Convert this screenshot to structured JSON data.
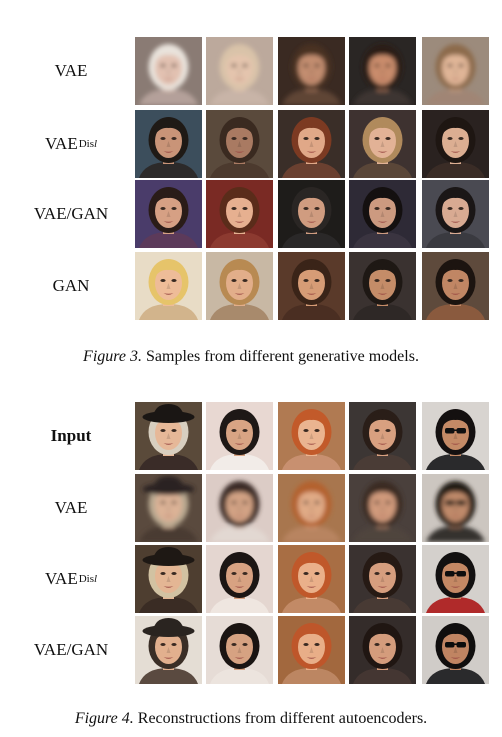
{
  "figure3": {
    "rows": [
      {
        "label": "VAE",
        "subscript": "",
        "bold": false,
        "blurred": true,
        "faces": [
          {
            "bg": "#8a7b74",
            "skin": "#e2c1b1",
            "hair": "#e9e3dc",
            "shirt": "#b4a09a"
          },
          {
            "bg": "#bca99c",
            "skin": "#e4c4ad",
            "hair": "#d9c3a9",
            "shirt": "#c8b4a7"
          },
          {
            "bg": "#3a2a22",
            "skin": "#c28d70",
            "hair": "#4a3022",
            "shirt": "#5e4536"
          },
          {
            "bg": "#2a2624",
            "skin": "#c98c6c",
            "hair": "#2a1c16",
            "shirt": "#3c3432"
          },
          {
            "bg": "#9c8b7c",
            "skin": "#e0b597",
            "hair": "#8c6a4c",
            "shirt": "#a08574"
          }
        ]
      },
      {
        "label": "VAE",
        "subscript": "Dis",
        "subscript_italic": "l",
        "bold": false,
        "blurred": false,
        "faces": [
          {
            "bg": "#3c4e5c",
            "skin": "#c99478",
            "hair": "#1f1a16",
            "shirt": "#2c2a2a"
          },
          {
            "bg": "#5a4a3c",
            "skin": "#a97a62",
            "hair": "#3a2a20",
            "shirt": "#4c3a2e"
          },
          {
            "bg": "#3a2e28",
            "skin": "#e0a888",
            "hair": "#7c3a22",
            "shirt": "#6a4030"
          },
          {
            "bg": "#3e3230",
            "skin": "#e2b296",
            "hair": "#b08a5c",
            "shirt": "#5a4638"
          },
          {
            "bg": "#2a2220",
            "skin": "#dcae92",
            "hair": "#1e1612",
            "shirt": "#3a2c26"
          }
        ]
      },
      {
        "label": "VAE/GAN",
        "subscript": "",
        "bold": false,
        "blurred": false,
        "faces": [
          {
            "bg": "#4a3c6a",
            "skin": "#d6a084",
            "hair": "#2a1c18",
            "shirt": "#5c3a5a"
          },
          {
            "bg": "#7a2a24",
            "skin": "#e6b090",
            "hair": "#5a2c1a",
            "shirt": "#8c3a30"
          },
          {
            "bg": "#1e1c1a",
            "skin": "#d09c80",
            "hair": "#2a2624",
            "shirt": "#2a2828"
          },
          {
            "bg": "#2e2a36",
            "skin": "#cc9a80",
            "hair": "#141010",
            "shirt": "#3a3440"
          },
          {
            "bg": "#4a4a52",
            "skin": "#d8aa92",
            "hair": "#1a1616",
            "shirt": "#3a3a40"
          }
        ]
      },
      {
        "label": "GAN",
        "subscript": "",
        "bold": false,
        "blurred": false,
        "faces": [
          {
            "bg": "#e8dcc6",
            "skin": "#eebc98",
            "hair": "#e6c46a",
            "shirt": "#d2b48c"
          },
          {
            "bg": "#c8b8a4",
            "skin": "#e2ae8a",
            "hair": "#b88a52",
            "shirt": "#a88a6c"
          },
          {
            "bg": "#5a3a2a",
            "skin": "#d69c76",
            "hair": "#3a2418",
            "shirt": "#4a2e22"
          },
          {
            "bg": "#3a3230",
            "skin": "#c48c68",
            "hair": "#1e1814",
            "shirt": "#2e2826"
          },
          {
            "bg": "#5e4a3c",
            "skin": "#c08664",
            "hair": "#1c1410",
            "shirt": "#8a5a3e"
          }
        ]
      }
    ],
    "caption_label": "Figure 3.",
    "caption_text": "Samples from different generative models."
  },
  "figure4": {
    "rows": [
      {
        "label": "Input",
        "subscript": "",
        "bold": true,
        "blurred": false,
        "faces": [
          {
            "bg": "#5a4a3a",
            "skin": "#e6b898",
            "hair": "#d8cfc0",
            "shirt": "#3a2c28",
            "hat": "#1a1614"
          },
          {
            "bg": "#e8d8d2",
            "skin": "#d8a484",
            "hair": "#1e1816",
            "shirt": "#f2ece8"
          },
          {
            "bg": "#b07a52",
            "skin": "#eab490",
            "hair": "#c25a2a",
            "shirt": "#c89070"
          },
          {
            "bg": "#3c3634",
            "skin": "#d8a080",
            "hair": "#2a1e18",
            "shirt": "#4a3c36"
          },
          {
            "bg": "#d8d4d0",
            "skin": "#c48a66",
            "hair": "#141010",
            "shirt": "#2a2a2c",
            "glasses": "#101010"
          }
        ]
      },
      {
        "label": "VAE",
        "subscript": "",
        "bold": false,
        "blurred": true,
        "faces": [
          {
            "bg": "#5a4a3e",
            "skin": "#dcb296",
            "hair": "#b8a890",
            "shirt": "#4a3a32",
            "hat": "#2a2420"
          },
          {
            "bg": "#dcccc6",
            "skin": "#d2a284",
            "hair": "#3a2c26",
            "shirt": "#e2d8d2"
          },
          {
            "bg": "#a8764e",
            "skin": "#e0aa86",
            "hair": "#b4622e",
            "shirt": "#b88460"
          },
          {
            "bg": "#4a403c",
            "skin": "#d09a7c",
            "hair": "#3a2c24",
            "shirt": "#50443e"
          },
          {
            "bg": "#ccc6c0",
            "skin": "#c08a6a",
            "hair": "#241c18",
            "shirt": "#34302e",
            "glasses": "#1e1a18"
          }
        ]
      },
      {
        "label": "VAE",
        "subscript": "Dis",
        "subscript_italic": "l",
        "bold": false,
        "blurred": false,
        "faces": [
          {
            "bg": "#4e3e30",
            "skin": "#e4b694",
            "hair": "#d2c2a2",
            "shirt": "#3a2c24",
            "hat": "#1e1814"
          },
          {
            "bg": "#e4d6d0",
            "skin": "#d8a282",
            "hair": "#1c1614",
            "shirt": "#efe6e0"
          },
          {
            "bg": "#a86e44",
            "skin": "#eab08a",
            "hair": "#c0582a",
            "shirt": "#c28a66"
          },
          {
            "bg": "#3a3230",
            "skin": "#d69e7e",
            "hair": "#261a14",
            "shirt": "#483a34"
          },
          {
            "bg": "#d4d0cc",
            "skin": "#c48864",
            "hair": "#121010",
            "shirt": "#b02a2a",
            "glasses": "#0e0e0e"
          }
        ]
      },
      {
        "label": "VAE/GAN",
        "subscript": "",
        "bold": false,
        "blurred": false,
        "faces": [
          {
            "bg": "#e4ddd4",
            "skin": "#e2b08e",
            "hair": "#3a2e26",
            "shirt": "#5a4a40",
            "hat": "#2a2420"
          },
          {
            "bg": "#e6dcd6",
            "skin": "#d6a282",
            "hair": "#1a1412",
            "shirt": "#ece4de"
          },
          {
            "bg": "#a2683e",
            "skin": "#e8ae88",
            "hair": "#be562a",
            "shirt": "#bc8662"
          },
          {
            "bg": "#342c2a",
            "skin": "#d49c7c",
            "hair": "#201612",
            "shirt": "#443632"
          },
          {
            "bg": "#d0ccc8",
            "skin": "#c08462",
            "hair": "#100e0e",
            "shirt": "#2a2a2c",
            "glasses": "#0c0c0c"
          }
        ]
      }
    ],
    "caption_label": "Figure 4.",
    "caption_text": "Reconstructions from different autoencoders."
  }
}
